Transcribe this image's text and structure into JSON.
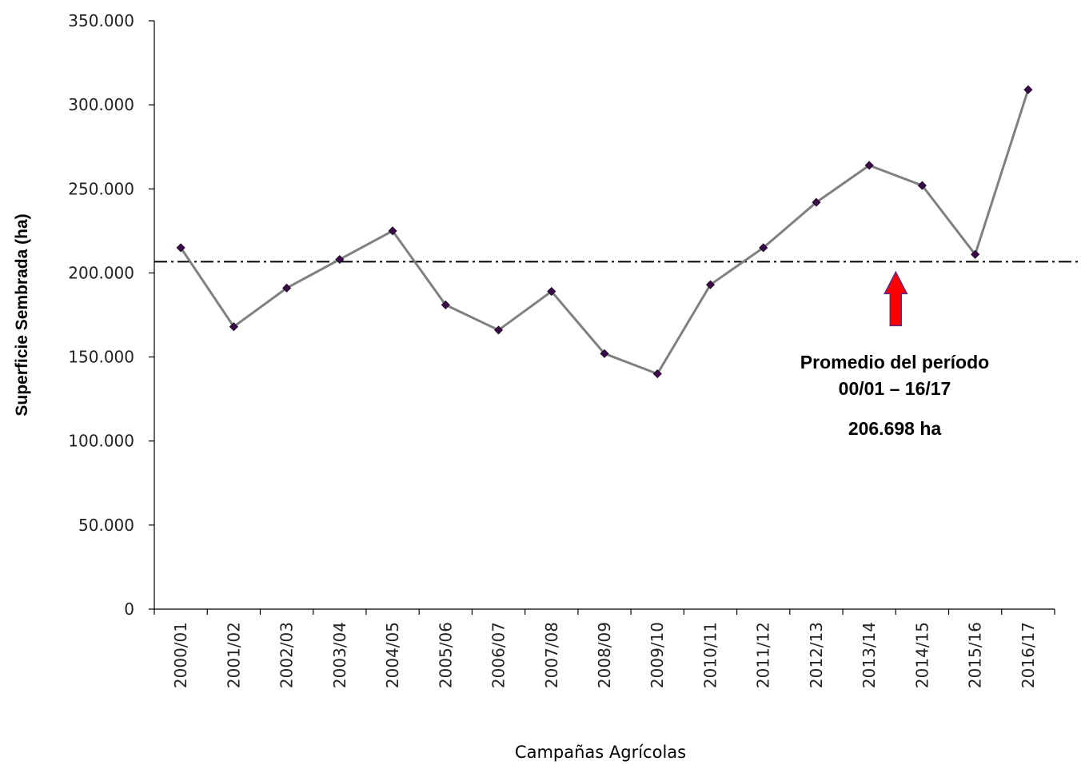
{
  "chart_data": {
    "type": "line",
    "xlabel": "Campañas Agrícolas",
    "ylabel": "Superficie Sembrada (ha)",
    "ylim": [
      0,
      350000
    ],
    "yticks": [
      0,
      50000,
      100000,
      150000,
      200000,
      250000,
      300000,
      350000
    ],
    "ytick_labels": [
      "0",
      "50.000",
      "100.000",
      "150.000",
      "200.000",
      "250.000",
      "300.000",
      "350.000"
    ],
    "categories": [
      "2000/01",
      "2001/02",
      "2002/03",
      "2003/04",
      "2004/05",
      "2005/06",
      "2006/07",
      "2007/08",
      "2008/09",
      "2009/10",
      "2010/11",
      "2011/12",
      "2012/13",
      "2013/14",
      "2014/15",
      "2015/16",
      "2016/17"
    ],
    "series": [
      {
        "values": [
          215000,
          168000,
          191000,
          208000,
          225000,
          181000,
          166000,
          189000,
          152000,
          140000,
          193000,
          215000,
          242000,
          264000,
          252000,
          211000,
          309000
        ],
        "line_color": "#808080",
        "marker_color": "#3b0a4a"
      }
    ],
    "reference_line": {
      "value": 206698,
      "style": "dash-dot",
      "color": "#000000"
    },
    "annotation": {
      "line1": "Promedio del período",
      "line2": "00/01 – 16/17",
      "line3": "206.698 ha",
      "arrow_color": "#ff0000",
      "arrow_outline": "#5a2a8a"
    },
    "grid": false,
    "legend": "none"
  }
}
